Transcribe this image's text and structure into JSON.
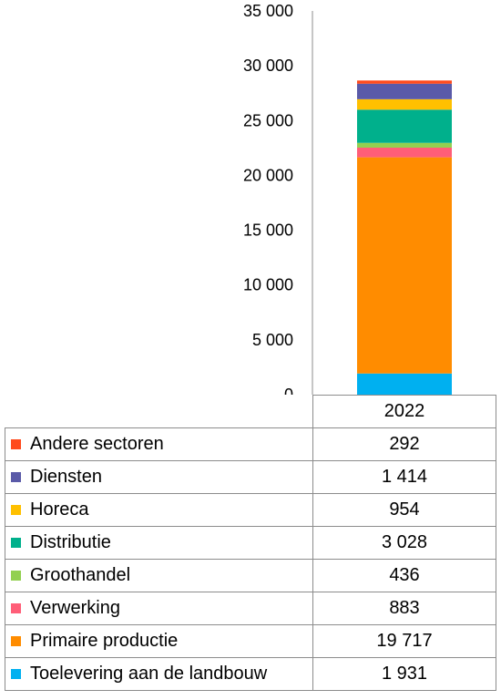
{
  "chart_data": {
    "type": "bar",
    "stacked": true,
    "categories": [
      "2022"
    ],
    "ylim": [
      0,
      35000
    ],
    "yticks": [
      0,
      5000,
      10000,
      15000,
      20000,
      25000,
      30000,
      35000
    ],
    "ytick_labels": [
      "0",
      "5 000",
      "10 000",
      "15 000",
      "20 000",
      "25 000",
      "30 000",
      "35 000"
    ],
    "grid": false,
    "legend": "data-table-below",
    "series": [
      {
        "name": "Toelevering aan de landbouw",
        "values": [
          1931
        ],
        "display": "1 931",
        "color": "#00b0f0"
      },
      {
        "name": "Primaire productie",
        "values": [
          19717
        ],
        "display": "19 717",
        "color": "#ff8c00"
      },
      {
        "name": "Verwerking",
        "values": [
          883
        ],
        "display": "883",
        "color": "#ff5e78"
      },
      {
        "name": "Groothandel",
        "values": [
          436
        ],
        "display": "436",
        "color": "#92d050"
      },
      {
        "name": "Distributie",
        "values": [
          3028
        ],
        "display": "3 028",
        "color": "#00b08c"
      },
      {
        "name": "Horeca",
        "values": [
          954
        ],
        "display": "954",
        "color": "#ffc000"
      },
      {
        "name": "Diensten",
        "values": [
          1414
        ],
        "display": "1 414",
        "color": "#5a5aa8"
      },
      {
        "name": "Andere sectoren",
        "values": [
          292
        ],
        "display": "292",
        "color": "#ff4a1c"
      }
    ]
  }
}
